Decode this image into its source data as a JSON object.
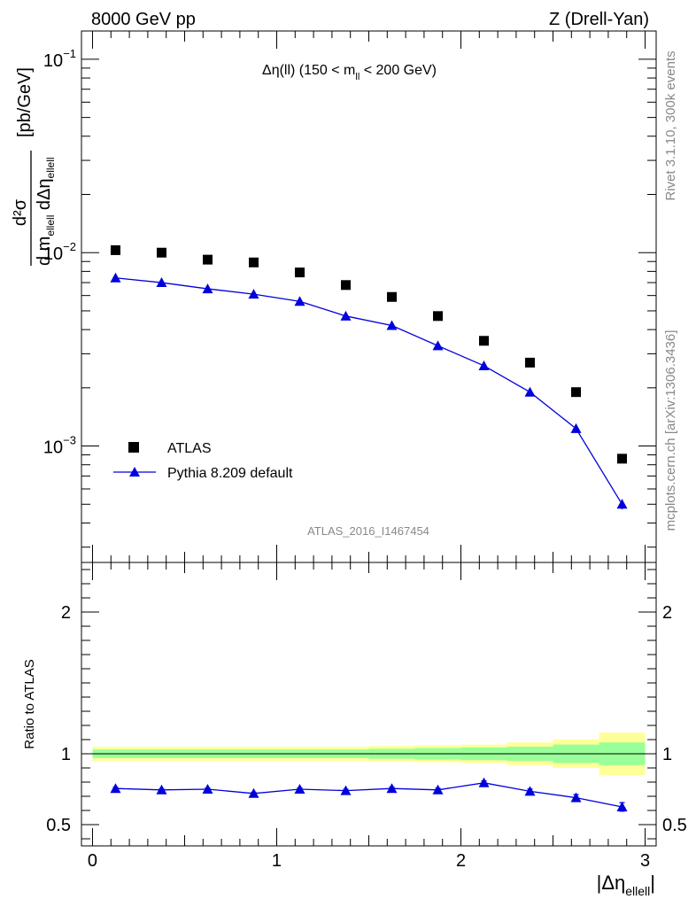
{
  "header": {
    "left": "8000 GeV pp",
    "right": "Z (Drell-Yan)"
  },
  "side_labels": {
    "rivet": "Rivet 3.1.10,  300k events",
    "mcplots": "mcplots.cern.ch [arXiv:1306.3436]"
  },
  "watermark": "ATLAS_2016_I1467454",
  "main_title": {
    "prefix": "Δη(ll) (150 < m",
    "sub": "ll",
    "suffix": " < 200 GeV)"
  },
  "y_label_main": {
    "unit": "[pb/GeV]",
    "numerator": "d²σ",
    "denominator": "d m",
    "den_sub1": "ellell",
    "den_mid": " dΔη",
    "den_sub2": "ellell"
  },
  "y_label_ratio": "Ratio to ATLAS",
  "x_label": {
    "text": "|Δη",
    "sub": "ellell",
    "suffix": "|"
  },
  "legend": {
    "data_label": "ATLAS",
    "mc_label": "Pythia 8.209 default"
  },
  "colors": {
    "data": "#000000",
    "mc": "#0000dd",
    "band_inner": "#99ff99",
    "band_outer": "#ffff99"
  },
  "chart_data": [
    {
      "type": "scatter",
      "panel": "main",
      "yscale": "log",
      "ylim": [
        0.00025,
        0.14
      ],
      "xlim": [
        -0.06,
        3.06
      ],
      "x": [
        0.125,
        0.375,
        0.625,
        0.875,
        1.125,
        1.375,
        1.625,
        1.875,
        2.125,
        2.375,
        2.625,
        2.875
      ],
      "series": [
        {
          "name": "ATLAS",
          "values": [
            0.0103,
            0.01,
            0.0092,
            0.0089,
            0.0079,
            0.0068,
            0.0059,
            0.0047,
            0.0035,
            0.0027,
            0.0019,
            0.00086
          ]
        },
        {
          "name": "Pythia 8.209 default",
          "values": [
            0.0074,
            0.007,
            0.0065,
            0.0061,
            0.0056,
            0.0047,
            0.0042,
            0.0033,
            0.0026,
            0.0019,
            0.00123,
            0.0005
          ],
          "errors": [
            3e-05,
            3e-05,
            3e-05,
            3e-05,
            3e-05,
            3e-05,
            3e-05,
            3e-05,
            3e-05,
            3e-05,
            3e-05,
            3e-05
          ]
        }
      ],
      "yticks_major": [
        0.001,
        0.01,
        0.1
      ],
      "ytick_labels": [
        {
          "base": "10",
          "exp": "−3"
        },
        {
          "base": "10",
          "exp": "−2"
        },
        {
          "base": "10",
          "exp": "−1"
        }
      ]
    },
    {
      "type": "line",
      "panel": "ratio",
      "ylim": [
        0.35,
        2.35
      ],
      "xlim": [
        -0.06,
        3.06
      ],
      "yticks": [
        0.5,
        1,
        2
      ],
      "ytick_labels": [
        "0.5",
        "1",
        "2"
      ],
      "xticks": [
        0,
        1,
        2,
        3
      ],
      "xtick_labels": [
        "0",
        "1",
        "2",
        "3"
      ],
      "bins": [
        0,
        0.25,
        0.5,
        0.75,
        1.0,
        1.25,
        1.5,
        1.75,
        2.0,
        2.25,
        2.5,
        2.75,
        3.0
      ],
      "band_inner": [
        0.03,
        0.03,
        0.03,
        0.03,
        0.03,
        0.03,
        0.035,
        0.04,
        0.045,
        0.05,
        0.065,
        0.08
      ],
      "band_outer": [
        0.05,
        0.05,
        0.05,
        0.05,
        0.05,
        0.05,
        0.055,
        0.06,
        0.065,
        0.08,
        0.1,
        0.15
      ],
      "x": [
        0.125,
        0.375,
        0.625,
        0.875,
        1.125,
        1.375,
        1.625,
        1.875,
        2.125,
        2.375,
        2.625,
        2.875
      ],
      "series": [
        {
          "name": "Pythia 8.209 default",
          "values": [
            0.755,
            0.745,
            0.75,
            0.72,
            0.75,
            0.74,
            0.755,
            0.745,
            0.795,
            0.735,
            0.69,
            0.625
          ],
          "errors": [
            0.008,
            0.008,
            0.008,
            0.008,
            0.009,
            0.009,
            0.01,
            0.011,
            0.013,
            0.016,
            0.022,
            0.03
          ]
        }
      ]
    }
  ]
}
